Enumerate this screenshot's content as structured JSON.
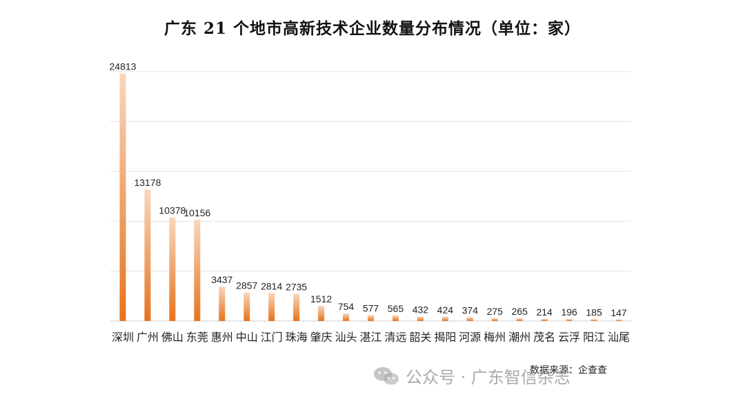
{
  "colors": {
    "bar_top": "#f8d7bd",
    "bar_bottom": "#e6731c",
    "grid": "#e3e3e3",
    "axis": "#d0d0d0",
    "text": "#222222"
  },
  "source": "数据来源：企查查",
  "watermark": {
    "icon": "wechat-icon",
    "text": "公众号 · 广东智信杂志"
  },
  "chart_data": {
    "type": "bar",
    "title": "广东 21 个地市高新技术企业数量分布情况（单位：家）",
    "xlabel": "",
    "ylabel": "",
    "ylim": [
      0,
      25000
    ],
    "grid": true,
    "legend": "none",
    "categories": [
      "深圳",
      "广州",
      "佛山",
      "东莞",
      "惠州",
      "中山",
      "江门",
      "珠海",
      "肇庆",
      "汕头",
      "湛江",
      "清远",
      "韶关",
      "揭阳",
      "河源",
      "梅州",
      "潮州",
      "茂名",
      "云浮",
      "阳江",
      "汕尾"
    ],
    "values": [
      24813,
      13178,
      10378,
      10156,
      3437,
      2857,
      2814,
      2735,
      1512,
      754,
      577,
      565,
      432,
      424,
      374,
      275,
      265,
      214,
      196,
      185,
      147
    ]
  }
}
